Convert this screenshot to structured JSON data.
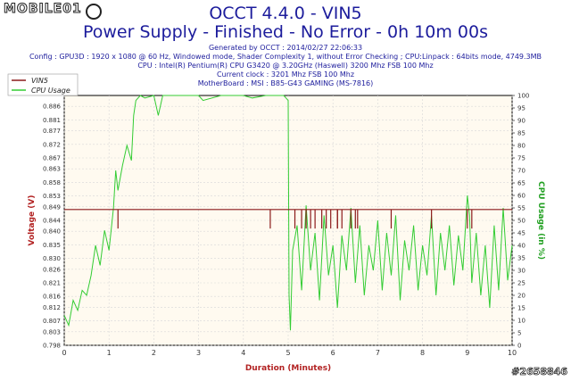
{
  "watermark_logo": "MOBILE01",
  "watermark_id": "#2658846",
  "chart_data": {
    "type": "line",
    "title": "OCCT 4.4.0 - VIN5",
    "subtitle": "Power Supply - Finished - No Error - 0h 10m 00s",
    "info_lines": [
      "Generated by OCCT : 2014/02/27 22:06:33",
      "Config : GPU3D : 1920 x 1080 @ 60 Hz, Windowed mode, Shader Complexity 1, without Error Checking ; CPU:Linpack : 64bits mode, 4749.3MB",
      "CPU : Intel(R) Pentium(R) CPU G3420 @ 3.20GHz (Haswell) 3200 Mhz FSB 100 Mhz",
      "Current clock : 3201 Mhz FSB 100 Mhz",
      "MotherBoard : MSI : B85-G43 GAMING (MS-7816)"
    ],
    "xlabel": "Duration (Minutes)",
    "ylabel": "Voltage (V)",
    "y2label": "CPU Usage (in %)",
    "xlim": [
      0,
      10
    ],
    "ylim": [
      0.798,
      0.89
    ],
    "y2lim": [
      0,
      100
    ],
    "x_ticks": [
      "0",
      "1",
      "2",
      "3",
      "4",
      "5",
      "6",
      "7",
      "8",
      "9",
      "10"
    ],
    "y_ticks": [
      "0.798",
      "0.803",
      "0.807",
      "0.812",
      "0.816",
      "0.821",
      "0.826",
      "0.830",
      "0.835",
      "0.840",
      "0.844",
      "0.849",
      "0.853",
      "0.858",
      "0.863",
      "0.867",
      "0.872",
      "0.877",
      "0.881",
      "0.886"
    ],
    "y2_ticks": [
      "0",
      "5",
      "10",
      "15",
      "20",
      "25",
      "30",
      "35",
      "40",
      "45",
      "50",
      "55",
      "60",
      "65",
      "70",
      "75",
      "80",
      "85",
      "90",
      "95",
      "100"
    ],
    "legend": [
      "VIN5",
      "CPU Usage"
    ],
    "colors": {
      "vin5": "#8b1a1a",
      "cpu": "#33cc33",
      "text": "#1c1c9c",
      "axis": "#b22222",
      "axis2": "#22a022",
      "plot_bg": "#fffaf0",
      "grid": "#d8d8d8"
    },
    "series": [
      {
        "name": "VIN5",
        "baseline": 0.848,
        "dips": [
          [
            1.2,
            0.841
          ],
          [
            4.6,
            0.841
          ],
          [
            5.15,
            0.841
          ],
          [
            5.3,
            0.841
          ],
          [
            5.4,
            0.841
          ],
          [
            5.5,
            0.841
          ],
          [
            5.6,
            0.841
          ],
          [
            5.75,
            0.841
          ],
          [
            5.85,
            0.841
          ],
          [
            5.95,
            0.841
          ],
          [
            6.1,
            0.841
          ],
          [
            6.2,
            0.841
          ],
          [
            6.4,
            0.841
          ],
          [
            6.5,
            0.841
          ],
          [
            6.55,
            0.841
          ],
          [
            6.1,
            0.841
          ],
          [
            7.3,
            0.841
          ],
          [
            8.2,
            0.841
          ],
          [
            9.0,
            0.841
          ],
          [
            9.1,
            0.841
          ]
        ]
      },
      {
        "name": "CPU Usage",
        "values": [
          [
            0,
            12
          ],
          [
            0.1,
            8
          ],
          [
            0.2,
            18
          ],
          [
            0.3,
            14
          ],
          [
            0.4,
            22
          ],
          [
            0.5,
            20
          ],
          [
            0.6,
            28
          ],
          [
            0.7,
            40
          ],
          [
            0.8,
            32
          ],
          [
            0.9,
            46
          ],
          [
            1.0,
            38
          ],
          [
            1.1,
            55
          ],
          [
            1.15,
            70
          ],
          [
            1.2,
            62
          ],
          [
            1.3,
            72
          ],
          [
            1.4,
            80
          ],
          [
            1.5,
            74
          ],
          [
            1.55,
            92
          ],
          [
            1.6,
            98
          ],
          [
            1.7,
            100
          ],
          [
            1.8,
            99
          ],
          [
            2.0,
            100
          ],
          [
            2.1,
            92
          ],
          [
            2.2,
            100
          ],
          [
            2.5,
            100
          ],
          [
            3.0,
            100
          ],
          [
            3.1,
            98
          ],
          [
            3.5,
            100
          ],
          [
            4.0,
            100
          ],
          [
            4.2,
            99
          ],
          [
            4.5,
            100
          ],
          [
            4.9,
            100
          ],
          [
            5.0,
            98
          ],
          [
            5.02,
            20
          ],
          [
            5.05,
            6
          ],
          [
            5.1,
            38
          ],
          [
            5.2,
            48
          ],
          [
            5.3,
            22
          ],
          [
            5.4,
            56
          ],
          [
            5.5,
            30
          ],
          [
            5.6,
            45
          ],
          [
            5.7,
            18
          ],
          [
            5.8,
            52
          ],
          [
            5.9,
            28
          ],
          [
            6.0,
            40
          ],
          [
            6.1,
            15
          ],
          [
            6.2,
            44
          ],
          [
            6.3,
            30
          ],
          [
            6.4,
            55
          ],
          [
            6.5,
            25
          ],
          [
            6.6,
            48
          ],
          [
            6.7,
            20
          ],
          [
            6.8,
            40
          ],
          [
            6.9,
            30
          ],
          [
            7.0,
            50
          ],
          [
            7.1,
            22
          ],
          [
            7.2,
            45
          ],
          [
            7.3,
            28
          ],
          [
            7.4,
            52
          ],
          [
            7.5,
            18
          ],
          [
            7.6,
            42
          ],
          [
            7.7,
            30
          ],
          [
            7.8,
            48
          ],
          [
            7.9,
            22
          ],
          [
            8.0,
            40
          ],
          [
            8.1,
            28
          ],
          [
            8.2,
            52
          ],
          [
            8.3,
            20
          ],
          [
            8.4,
            45
          ],
          [
            8.5,
            30
          ],
          [
            8.6,
            48
          ],
          [
            8.7,
            24
          ],
          [
            8.8,
            44
          ],
          [
            8.9,
            30
          ],
          [
            9.0,
            60
          ],
          [
            9.05,
            52
          ],
          [
            9.1,
            25
          ],
          [
            9.2,
            45
          ],
          [
            9.3,
            20
          ],
          [
            9.4,
            40
          ],
          [
            9.5,
            15
          ],
          [
            9.6,
            48
          ],
          [
            9.7,
            22
          ],
          [
            9.8,
            55
          ],
          [
            9.9,
            26
          ],
          [
            10.0,
            40
          ]
        ]
      }
    ]
  }
}
